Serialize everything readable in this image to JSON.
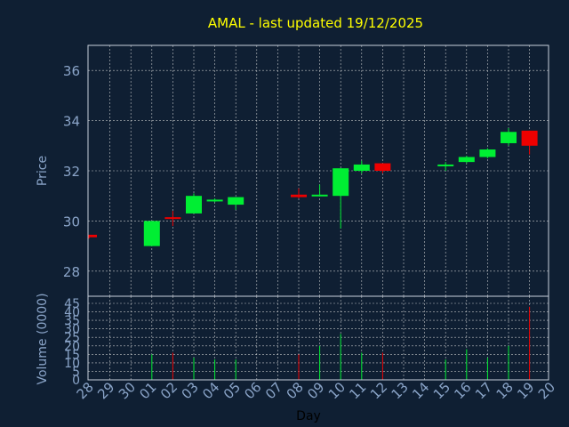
{
  "chart_data": [
    {
      "type": "candlestick",
      "title": "AMAL - last updated 19/12/2025",
      "ylabel": "Price",
      "ylim": [
        27,
        37
      ],
      "yticks": [
        28,
        30,
        32,
        34,
        36
      ],
      "grid": true,
      "colors": {
        "up": "#00ee33",
        "down": "#ee0000",
        "title": "#ffff00",
        "text": "#8aa4c8",
        "background": "#0f1f33"
      },
      "x_ticks": [
        "28",
        "29",
        "30",
        "01",
        "02",
        "03",
        "04",
        "05",
        "06",
        "07",
        "08",
        "09",
        "10",
        "11",
        "12",
        "13",
        "14",
        "15",
        "16",
        "17",
        "18",
        "19",
        "20"
      ],
      "candles": [
        {
          "day": "28",
          "open": 29.45,
          "close": 29.35,
          "high": 29.45,
          "low": 29.3
        },
        {
          "day": "01",
          "open": 29.0,
          "close": 30.0,
          "high": 30.0,
          "low": 29.0
        },
        {
          "day": "02",
          "open": 30.15,
          "close": 30.1,
          "high": 30.4,
          "low": 29.8
        },
        {
          "day": "03",
          "open": 30.3,
          "close": 31.0,
          "high": 31.1,
          "low": 30.3
        },
        {
          "day": "04",
          "open": 30.8,
          "close": 30.85,
          "high": 30.9,
          "low": 30.75
        },
        {
          "day": "05",
          "open": 30.65,
          "close": 30.95,
          "high": 30.95,
          "low": 30.45
        },
        {
          "day": "08",
          "open": 31.05,
          "close": 30.95,
          "high": 31.3,
          "low": 30.9
        },
        {
          "day": "09",
          "open": 31.0,
          "close": 31.05,
          "high": 31.45,
          "low": 31.0
        },
        {
          "day": "10",
          "open": 31.0,
          "close": 32.1,
          "high": 32.1,
          "low": 29.7
        },
        {
          "day": "11",
          "open": 32.0,
          "close": 32.25,
          "high": 32.4,
          "low": 31.9
        },
        {
          "day": "12",
          "open": 32.3,
          "close": 32.0,
          "high": 32.3,
          "low": 31.9
        },
        {
          "day": "15",
          "open": 32.2,
          "close": 32.25,
          "high": 32.35,
          "low": 32.0
        },
        {
          "day": "16",
          "open": 32.35,
          "close": 32.55,
          "high": 32.6,
          "low": 32.3
        },
        {
          "day": "17",
          "open": 32.55,
          "close": 32.85,
          "high": 32.9,
          "low": 32.5
        },
        {
          "day": "18",
          "open": 33.1,
          "close": 33.55,
          "high": 33.7,
          "low": 33.0
        },
        {
          "day": "19",
          "open": 33.6,
          "close": 33.0,
          "high": 33.6,
          "low": 32.65
        }
      ]
    },
    {
      "type": "bar",
      "ylabel": "Volume (0000)",
      "xlabel": "Day",
      "ylim": [
        0,
        45
      ],
      "yticks": [
        0,
        5,
        10,
        15,
        20,
        25,
        30,
        35,
        40,
        45
      ],
      "grid": true,
      "bars": [
        {
          "day": "28",
          "value": 0,
          "direction": "down"
        },
        {
          "day": "01",
          "value": 15,
          "direction": "up"
        },
        {
          "day": "02",
          "value": 16,
          "direction": "down"
        },
        {
          "day": "03",
          "value": 13,
          "direction": "up"
        },
        {
          "day": "04",
          "value": 12,
          "direction": "up"
        },
        {
          "day": "05",
          "value": 12,
          "direction": "up"
        },
        {
          "day": "08",
          "value": 15,
          "direction": "down"
        },
        {
          "day": "09",
          "value": 20,
          "direction": "up"
        },
        {
          "day": "10",
          "value": 27,
          "direction": "up"
        },
        {
          "day": "11",
          "value": 16,
          "direction": "up"
        },
        {
          "day": "12",
          "value": 16,
          "direction": "down"
        },
        {
          "day": "15",
          "value": 12,
          "direction": "up"
        },
        {
          "day": "16",
          "value": 18,
          "direction": "up"
        },
        {
          "day": "17",
          "value": 13,
          "direction": "up"
        },
        {
          "day": "18",
          "value": 20,
          "direction": "up"
        },
        {
          "day": "19",
          "value": 43,
          "direction": "down"
        }
      ]
    }
  ]
}
